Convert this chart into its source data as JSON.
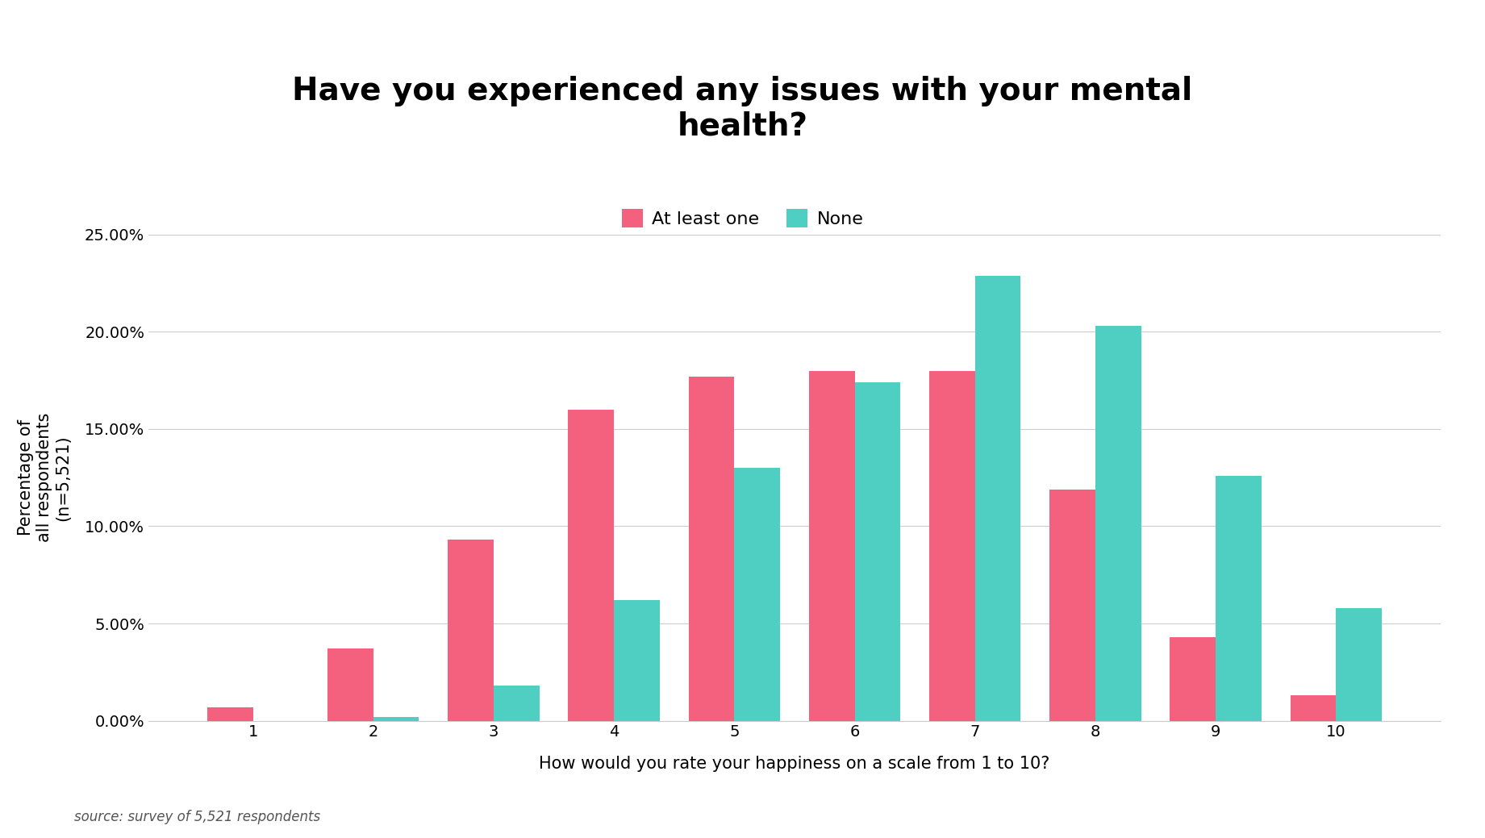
{
  "title": "Have you experienced any issues with your mental\nhealth?",
  "xlabel": "How would you rate your happiness on a scale from 1 to 10?",
  "ylabel": "Percentage of\nall respondents\n(n=5,521)",
  "source": "source: survey of 5,521 respondents",
  "categories": [
    1,
    2,
    3,
    4,
    5,
    6,
    7,
    8,
    9,
    10
  ],
  "at_least_one": [
    0.007,
    0.037,
    0.093,
    0.16,
    0.177,
    0.18,
    0.18,
    0.119,
    0.043,
    0.013
  ],
  "none": [
    0.0,
    0.002,
    0.018,
    0.062,
    0.13,
    0.174,
    0.229,
    0.203,
    0.126,
    0.058
  ],
  "color_at_least_one": "#F4617F",
  "color_none": "#4ECFC1",
  "legend_labels": [
    "At least one",
    "None"
  ],
  "ylim": [
    0,
    0.25
  ],
  "yticks": [
    0.0,
    0.05,
    0.1,
    0.15,
    0.2,
    0.25
  ],
  "ytick_labels": [
    "0.00%",
    "5.00%",
    "10.00%",
    "15.00%",
    "20.00%",
    "25.00%"
  ],
  "background_color": "#FFFFFF",
  "title_fontsize": 28,
  "axis_label_fontsize": 15,
  "tick_fontsize": 14,
  "legend_fontsize": 16,
  "source_fontsize": 12,
  "bar_width": 0.38
}
